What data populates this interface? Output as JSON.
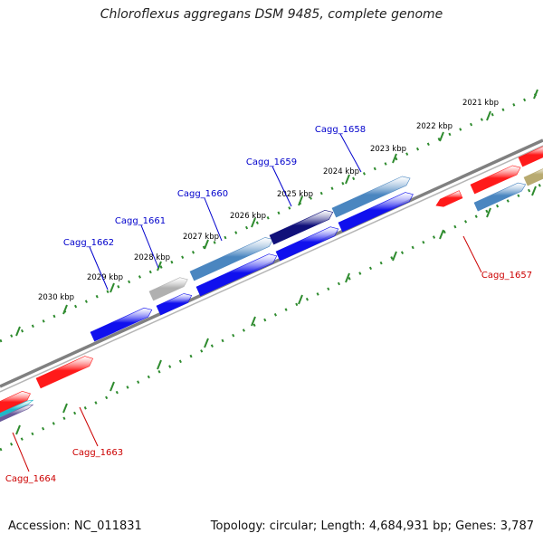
{
  "title": "Chloroflexus aggregans DSM 9485, complete genome",
  "footer": {
    "accession_label": "Accession:",
    "accession": "NC_011831",
    "topology_label": "Topology:",
    "topology": "circular",
    "length_label": "Length:",
    "length": "4,684,931 bp",
    "genes_label": "Genes:",
    "genes": "3,787"
  },
  "scale_labels": [
    "2021 kbp",
    "2022 kbp",
    "2023 kbp",
    "2024 kbp",
    "2025 kbp",
    "2026 kbp",
    "2027 kbp",
    "2028 kbp",
    "2029 kbp",
    "2030 kbp"
  ],
  "gene_labels": [
    {
      "text": "Cagg_1658",
      "strand": "top"
    },
    {
      "text": "Cagg_1659",
      "strand": "top"
    },
    {
      "text": "Cagg_1660",
      "strand": "top"
    },
    {
      "text": "Cagg_1661",
      "strand": "top"
    },
    {
      "text": "Cagg_1662",
      "strand": "top"
    },
    {
      "text": "Cagg_1657",
      "strand": "bottom"
    },
    {
      "text": "Cagg_1663",
      "strand": "bottom"
    },
    {
      "text": "Cagg_1664",
      "strand": "bottom"
    }
  ],
  "colors": {
    "backbone": "#808080",
    "ticks": "#2e8b2e",
    "top_label": "#0000cc",
    "bottom_label": "#cc0000",
    "red_gene": "#ff1a1a",
    "blue_gene": "#1010ee",
    "steel_gene": "#4a86c0",
    "navy_gene": "#10107a",
    "gray_gene": "#b0b0b0",
    "olive_gene": "#b8aa70",
    "teal_gene": "#20b8c8",
    "purple_gene": "#6a5a9a"
  }
}
